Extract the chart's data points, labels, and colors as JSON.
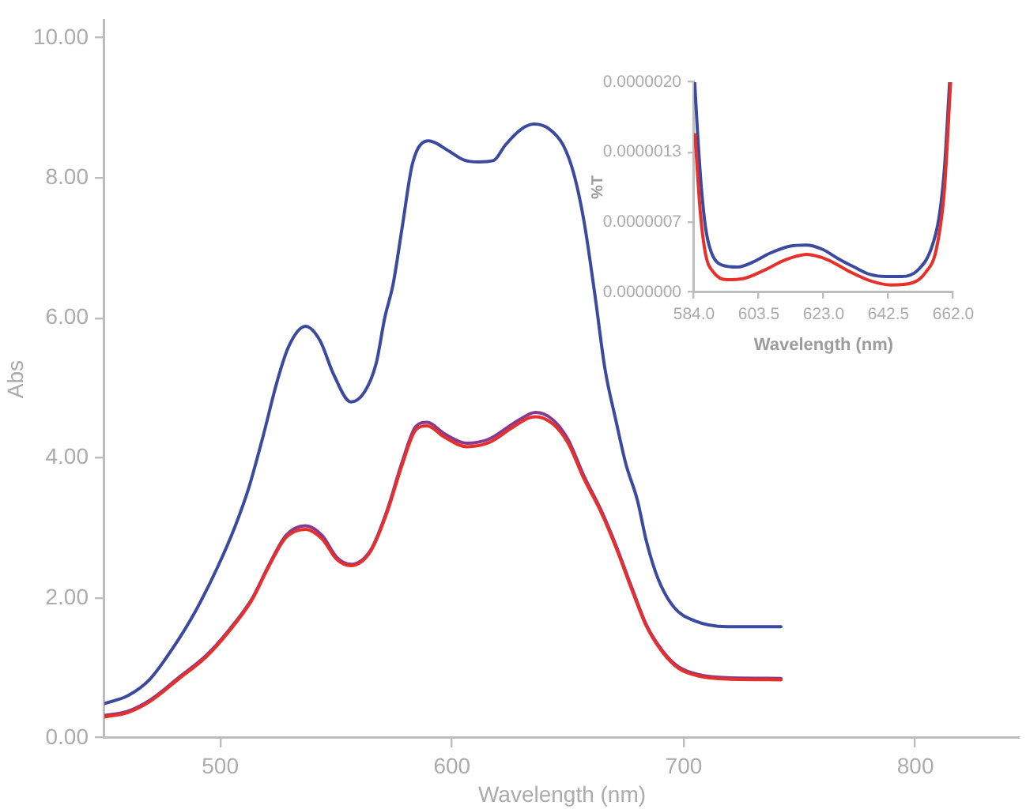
{
  "chart_data": [
    {
      "type": "line",
      "xlabel": "Wavelength (nm)",
      "ylabel": "Abs",
      "xlim": [
        450,
        845
      ],
      "xticks": [
        500,
        600,
        700,
        800
      ],
      "ylim": [
        0,
        10.25
      ],
      "yticks": [
        {
          "value": 0,
          "label": "0.00"
        },
        {
          "value": 2,
          "label": "2.00"
        },
        {
          "value": 4,
          "label": "4.00"
        },
        {
          "value": 6,
          "label": "6.00"
        },
        {
          "value": 8,
          "label": "8.00"
        },
        {
          "value": 10,
          "label": "10.00"
        }
      ],
      "grid": false,
      "legend": false,
      "marker": "none",
      "series": [
        {
          "color": "#3b4a9e",
          "x": [
            450,
            460,
            469.7,
            479.5,
            489.3,
            499,
            506.4,
            512.4,
            518.5,
            524.7,
            529.5,
            536.8,
            543,
            549,
            556.4,
            562.4,
            567.3,
            571,
            574.6,
            578.6,
            583,
            590,
            598,
            605,
            611.5,
            618,
            623,
            630,
            635.5,
            642,
            648,
            652.6,
            657,
            661.7,
            666,
            670.8,
            675,
            680,
            684,
            689,
            696,
            705,
            718.6,
            742
          ],
          "values": [
            0.49,
            0.6,
            0.84,
            1.28,
            1.81,
            2.45,
            3.02,
            3.58,
            4.31,
            5.11,
            5.59,
            5.88,
            5.68,
            5.19,
            4.8,
            4.95,
            5.35,
            6.0,
            6.48,
            7.31,
            8.21,
            8.53,
            8.4,
            8.26,
            8.23,
            8.25,
            8.47,
            8.7,
            8.77,
            8.7,
            8.47,
            8.06,
            7.38,
            6.33,
            5.28,
            4.53,
            3.92,
            3.4,
            2.8,
            2.27,
            1.86,
            1.67,
            1.59,
            1.59
          ]
        },
        {
          "color": "#8a3a8c",
          "x": [
            450,
            460,
            469.7,
            482,
            494,
            504,
            513.7,
            521,
            528.3,
            536.8,
            544,
            550.3,
            556.4,
            565,
            572.2,
            578.3,
            584.4,
            589.3,
            596.6,
            606.4,
            616,
            625.9,
            633,
            636,
            643.4,
            650,
            657,
            664,
            670.8,
            677.6,
            684,
            691,
            698,
            707,
            718.6,
            742
          ],
          "values": [
            0.32,
            0.38,
            0.54,
            0.86,
            1.18,
            1.55,
            1.99,
            2.47,
            2.89,
            3.03,
            2.89,
            2.58,
            2.48,
            2.69,
            3.27,
            3.92,
            4.45,
            4.51,
            4.35,
            4.21,
            4.27,
            4.48,
            4.62,
            4.65,
            4.55,
            4.27,
            3.74,
            3.28,
            2.75,
            2.15,
            1.61,
            1.24,
            1.01,
            0.9,
            0.86,
            0.85
          ]
        },
        {
          "color": "#e5302c",
          "x": [
            450,
            460,
            469.7,
            482,
            494,
            504,
            513.7,
            521,
            528.3,
            536.8,
            544,
            550.3,
            556.4,
            565,
            572.2,
            578.3,
            584.4,
            589.3,
            596.6,
            606.4,
            616,
            625.9,
            633,
            636,
            643.4,
            650,
            657,
            664,
            670.8,
            677.6,
            684,
            691,
            698,
            707,
            718.6,
            742
          ],
          "values": [
            0.3,
            0.36,
            0.52,
            0.84,
            1.16,
            1.53,
            1.97,
            2.45,
            2.86,
            2.98,
            2.84,
            2.55,
            2.46,
            2.67,
            3.24,
            3.88,
            4.4,
            4.46,
            4.3,
            4.16,
            4.22,
            4.43,
            4.57,
            4.59,
            4.49,
            4.22,
            3.7,
            3.25,
            2.72,
            2.12,
            1.59,
            1.22,
            0.99,
            0.88,
            0.84,
            0.83
          ]
        }
      ]
    },
    {
      "type": "line",
      "xlabel": "Wavelength (nm)",
      "ylabel": "%T",
      "xlim": [
        584,
        662
      ],
      "xticks": [
        {
          "value": 584,
          "label": "584.0"
        },
        {
          "value": 603.5,
          "label": "603.5"
        },
        {
          "value": 623,
          "label": "623.0"
        },
        {
          "value": 642.5,
          "label": "642.5"
        },
        {
          "value": 662,
          "label": "662.0"
        }
      ],
      "ylim": [
        0,
        2e-06
      ],
      "yticks": [
        {
          "value": 0,
          "label": "0.0000000"
        },
        {
          "value": 6.667e-07,
          "label": "0.0000007"
        },
        {
          "value": 1.3333e-06,
          "label": "0.0000013"
        },
        {
          "value": 2e-06,
          "label": "0.0000020"
        }
      ],
      "grid": false,
      "legend": false,
      "marker": "none",
      "series": [
        {
          "color": "#3b4a9e",
          "x": [
            584.2,
            585.1,
            586.2,
            587.5,
            589.1,
            592.3,
            597.1,
            601.9,
            606.7,
            613,
            617.8,
            622.6,
            627.4,
            632.2,
            637,
            641.8,
            646.5,
            651.3,
            655.3,
            657.7,
            659.3,
            660.9
          ],
          "values": [
            2e-06,
            1.5e-06,
            1e-06,
            6.1e-07,
            3.9e-07,
            2.6e-07,
            2.4e-07,
            2.9e-07,
            3.7e-07,
            4.4e-07,
            4.5e-07,
            4.1e-07,
            3.2e-07,
            2.4e-07,
            1.7e-07,
            1.5e-07,
            1.5e-07,
            2.1e-07,
            4.1e-07,
            7.1e-07,
            1.16e-06,
            2e-06
          ]
        },
        {
          "color": "#e5302c",
          "x": [
            584.3,
            585.9,
            587.5,
            589.9,
            593.9,
            598.7,
            605.1,
            611.5,
            617.8,
            624.2,
            630.6,
            637,
            643.3,
            649.7,
            653.7,
            656.9,
            659.3,
            661.2
          ],
          "values": [
            1.5e-06,
            7.6e-07,
            3.6e-07,
            1.9e-07,
            1.2e-07,
            1.3e-07,
            2.1e-07,
            3.1e-07,
            3.6e-07,
            3.1e-07,
            2e-07,
            1.1e-07,
            7e-08,
            9e-08,
            1.9e-07,
            4.1e-07,
            9.6e-07,
            2e-06
          ]
        }
      ]
    }
  ]
}
